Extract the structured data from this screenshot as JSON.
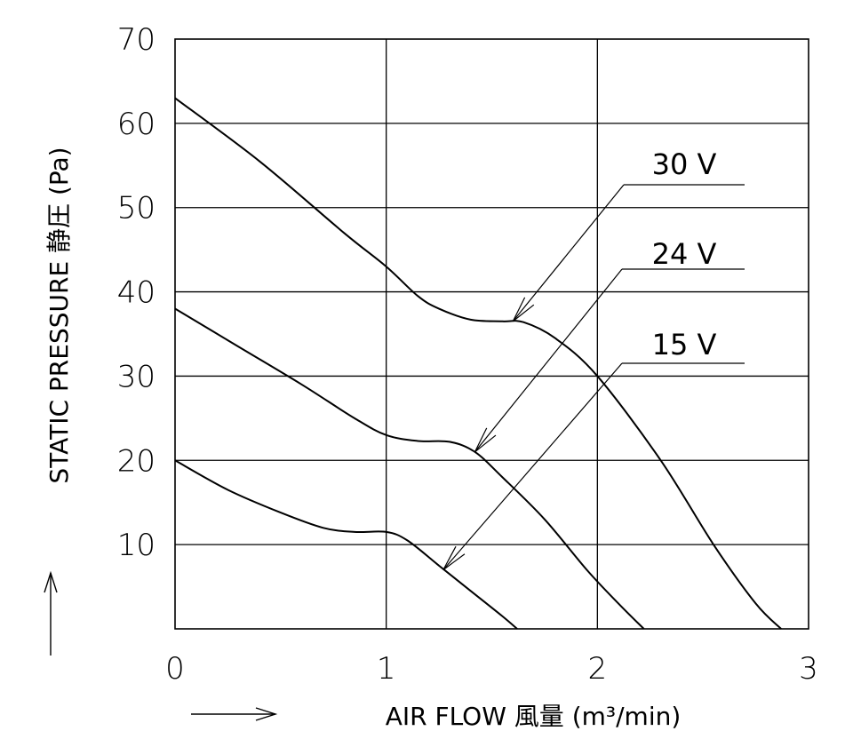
{
  "chart_data": {
    "type": "line",
    "xlabel": "AIR FLOW 風量 (m³/min)",
    "ylabel": "STATIC PRESSURE 静圧 (Pa)",
    "xlim": [
      0,
      3
    ],
    "ylim": [
      0,
      70
    ],
    "x_ticks": [
      "0",
      "1",
      "2",
      "3"
    ],
    "y_ticks": [
      "10",
      "20",
      "30",
      "40",
      "50",
      "60",
      "70"
    ],
    "grid": true,
    "series": [
      {
        "name": "30 V",
        "x": [
          0,
          0.4,
          0.8,
          1.0,
          1.15,
          1.25,
          1.4,
          1.55,
          1.65,
          1.8,
          2.0,
          2.3,
          2.55,
          2.75,
          2.87
        ],
        "y": [
          63,
          55.5,
          47,
          43,
          39.5,
          38,
          36.7,
          36.5,
          36.4,
          34.5,
          30,
          20,
          10,
          3,
          0
        ]
      },
      {
        "name": "24 V",
        "x": [
          0,
          0.3,
          0.6,
          0.85,
          1.0,
          1.15,
          1.3,
          1.42,
          1.55,
          1.75,
          1.95,
          2.1,
          2.22
        ],
        "y": [
          38,
          33.5,
          29,
          25,
          23,
          22.3,
          22.2,
          21,
          18,
          13,
          7,
          3,
          0
        ]
      },
      {
        "name": "15 V",
        "x": [
          0,
          0.25,
          0.5,
          0.7,
          0.85,
          1.0,
          1.1,
          1.25,
          1.4,
          1.55,
          1.62
        ],
        "y": [
          20,
          16.5,
          13.8,
          12,
          11.5,
          11.5,
          10.5,
          7.5,
          4.5,
          1.5,
          0
        ]
      }
    ],
    "annotations": [
      {
        "label": "30 V",
        "points_to": {
          "x": 1.6,
          "y": 36.5
        }
      },
      {
        "label": "24 V",
        "points_to": {
          "x": 1.42,
          "y": 21
        }
      },
      {
        "label": "15 V",
        "points_to": {
          "x": 1.27,
          "y": 7
        }
      }
    ]
  }
}
